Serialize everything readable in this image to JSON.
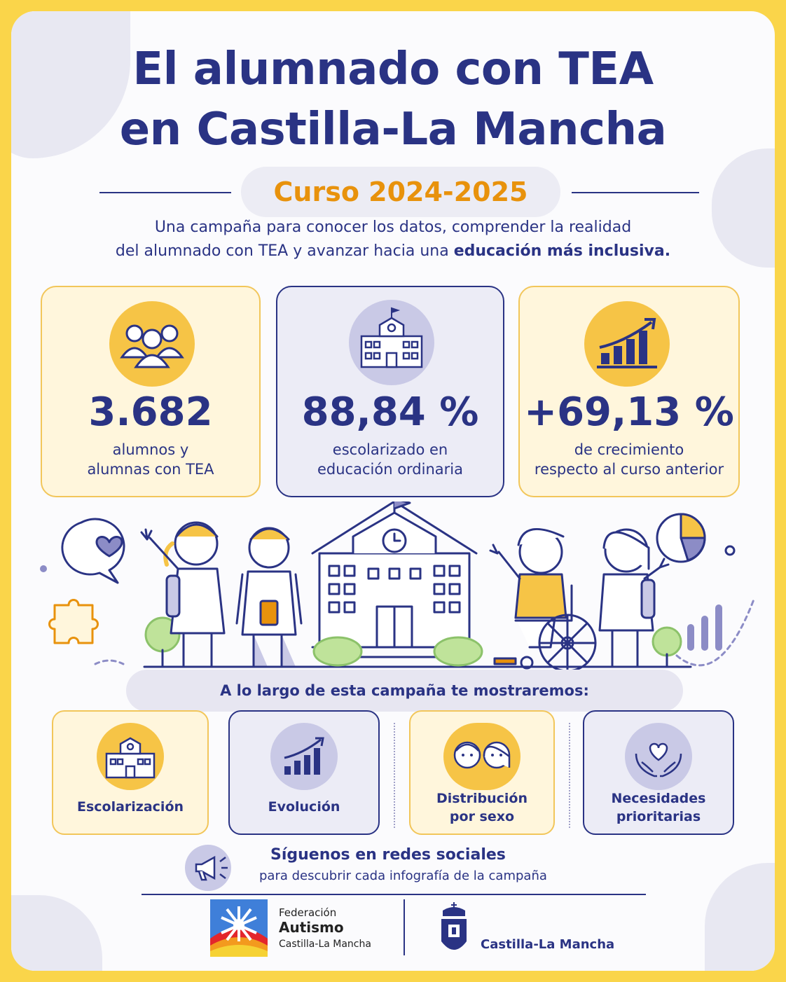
{
  "header": {
    "title_line1": "El alumnado con TEA",
    "title_line2": "en Castilla-La Mancha",
    "course": "Curso 2024-2025"
  },
  "intro": {
    "line1": "Una campaña para conocer los datos, comprender la realidad",
    "line2_plain": "del alumnado con TEA y avanzar hacia una ",
    "line2_bold": "educación más inclusiva."
  },
  "stats": [
    {
      "value": "3.682",
      "label_line1": "alumnos y",
      "label_line2": "alumnas con TEA",
      "icon": "students-group-icon"
    },
    {
      "value": "88,84 %",
      "label_line1": "escolarizado en",
      "label_line2": "educación ordinaria",
      "icon": "school-building-icon"
    },
    {
      "value": "+69,13 %",
      "label_line1": "de crecimiento",
      "label_line2": "respecto al curso anterior",
      "icon": "growth-chart-icon"
    }
  ],
  "topics_banner": "A lo largo de esta campaña te mostraremos:",
  "topics": [
    {
      "line1": "Escolarización",
      "line2": "",
      "icon": "school-icon"
    },
    {
      "line1": "Evolución",
      "line2": "",
      "icon": "rising-chart-icon"
    },
    {
      "line1": "Distribución",
      "line2": "por sexo",
      "icon": "boy-girl-icon"
    },
    {
      "line1": "Necesidades",
      "line2": "prioritarias",
      "icon": "hands-heart-icon"
    }
  ],
  "follow": {
    "title": "Síguenos en redes sociales",
    "subtitle": "para descubrir cada infografía de la campaña"
  },
  "footer": {
    "fed_line1": "Federación",
    "fed_line2": "Autismo",
    "fed_line3": "Castilla-La Mancha",
    "gov_name": "Castilla-La Mancha"
  },
  "colors": {
    "navy": "#2a3384",
    "yellow": "#f6c446",
    "orange": "#e8920c",
    "lavender": "#c9c9e6",
    "frame": "#fad54a"
  }
}
